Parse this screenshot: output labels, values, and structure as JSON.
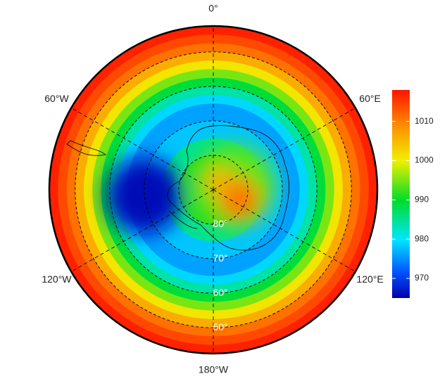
{
  "map": {
    "type": "polar-stereographic",
    "lat_limit": -42.5,
    "longitude_labels": [
      {
        "text": "0°",
        "lon": 0
      },
      {
        "text": "60°E",
        "lon": 60
      },
      {
        "text": "120°E",
        "lon": 120
      },
      {
        "text": "180°W",
        "lon": 180
      },
      {
        "text": "120°W",
        "lon": -120
      },
      {
        "text": "60°W",
        "lon": -60
      }
    ],
    "latitude_labels": [
      {
        "text": "80°",
        "lat": -80
      },
      {
        "text": "70°",
        "lat": -70
      },
      {
        "text": "60°",
        "lat": -60
      },
      {
        "text": "50°",
        "lat": -50
      }
    ],
    "field": [
      {
        "lat": -42.5,
        "value": 1017
      },
      {
        "lat": -45,
        "value": 1014
      },
      {
        "lat": -47.5,
        "value": 1011
      },
      {
        "lat": -50,
        "value": 1006
      },
      {
        "lat": -52.5,
        "value": 1001
      },
      {
        "lat": -55,
        "value": 995
      },
      {
        "lat": -57.5,
        "value": 989
      },
      {
        "lat": -60,
        "value": 984
      },
      {
        "lat": -62.5,
        "value": 979
      },
      {
        "lat": -65,
        "value": 976
      },
      {
        "lat": -67.5,
        "value": 976
      },
      {
        "lat": -70,
        "value": 978
      },
      {
        "lat": -75,
        "value": 985
      },
      {
        "lat": -80,
        "value": 991
      }
    ],
    "anomalies": [
      {
        "lat": -70,
        "lon": -95,
        "value": 966,
        "size": 11
      },
      {
        "lat": -84,
        "lon": 80,
        "value": 994,
        "size": 12
      },
      {
        "lat": -82,
        "lon": 110,
        "value": 1011,
        "size": 6
      },
      {
        "lat": -87,
        "lon": 30,
        "value": 1006,
        "size": 4
      }
    ],
    "colorbar": {
      "lim": [
        965,
        1018
      ],
      "ticks": [
        970,
        980,
        990,
        1000,
        1010
      ]
    }
  }
}
